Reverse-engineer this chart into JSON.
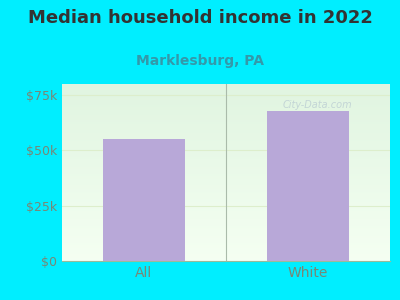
{
  "title": "Median household income in 2022",
  "subtitle": "Marklesburg, PA",
  "categories": [
    "All",
    "White"
  ],
  "values": [
    55000,
    68000
  ],
  "bar_color": "#b8a8d8",
  "title_fontsize": 13,
  "title_color": "#333333",
  "subtitle_fontsize": 10,
  "subtitle_color": "#3399aa",
  "tick_label_color": "#778877",
  "background_color": "#00eeff",
  "ylim": [
    0,
    80000
  ],
  "yticks": [
    0,
    25000,
    50000,
    75000
  ],
  "ytick_labels": [
    "$0",
    "$25k",
    "$50k",
    "$75k"
  ],
  "watermark": "City-Data.com",
  "grid_color": "#ddeecc",
  "divider_color": "#aabbaa"
}
